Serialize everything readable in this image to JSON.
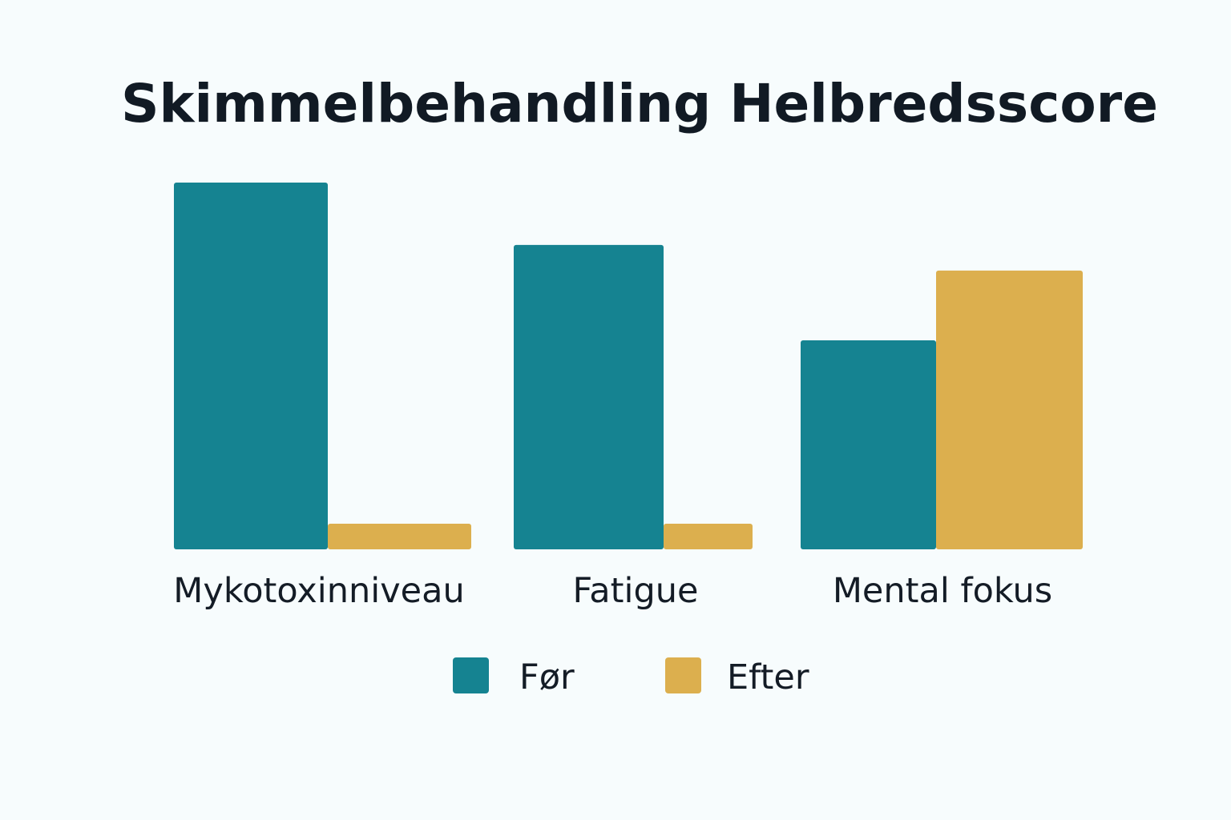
{
  "chart_data": {
    "type": "bar",
    "title": "Skimmelbehandling Helbredsscore",
    "xlabel": "",
    "ylabel": "",
    "grid": false,
    "legend_position": "bottom-center",
    "categories": [
      "Mykotoxinniveau",
      "Fatigue",
      "Mental fokus"
    ],
    "series": [
      {
        "name": "Før",
        "color": "#158391",
        "values": [
          100,
          83,
          57
        ]
      },
      {
        "name": "Efter",
        "color": "#dcaf4e",
        "values": [
          7,
          7,
          76
        ]
      }
    ],
    "ylim": [
      0,
      100
    ]
  }
}
